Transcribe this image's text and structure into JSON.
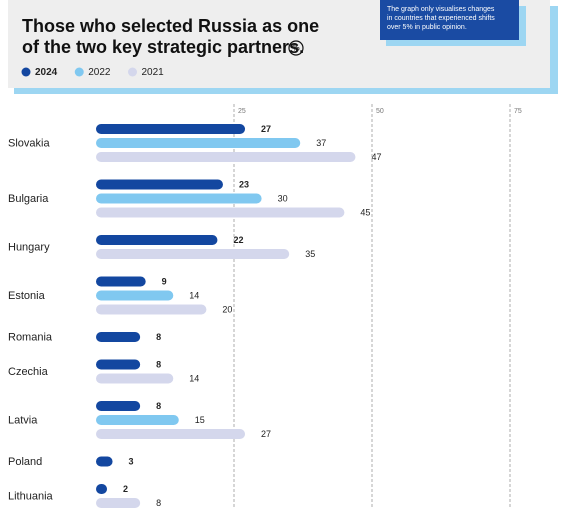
{
  "chart_data": {
    "type": "bar",
    "orientation": "horizontal",
    "title": [
      "Those who selected Russia as one",
      "of the two key strategic partners."
    ],
    "unit": "%",
    "note": [
      "The graph only visualises changes",
      "in countries that experienced shifts",
      "over 5% in public opinion."
    ],
    "categories": [
      "Slovakia",
      "Bulgaria",
      "Hungary",
      "Estonia",
      "Romania",
      "Czechia",
      "Latvia",
      "Poland",
      "Lithuania"
    ],
    "series": [
      {
        "name": "2024",
        "color": "#1347a0",
        "values": [
          27,
          23,
          22,
          9,
          8,
          8,
          8,
          3,
          2
        ]
      },
      {
        "name": "2022",
        "color": "#80c8f0",
        "values": [
          37,
          30,
          null,
          14,
          null,
          null,
          15,
          null,
          null
        ]
      },
      {
        "name": "2021",
        "color": "#d4d7ec",
        "values": [
          47,
          45,
          35,
          20,
          null,
          14,
          27,
          null,
          8
        ]
      }
    ],
    "xlim": [
      0,
      80
    ],
    "xticks": [
      25,
      50,
      75
    ],
    "grid": true
  }
}
